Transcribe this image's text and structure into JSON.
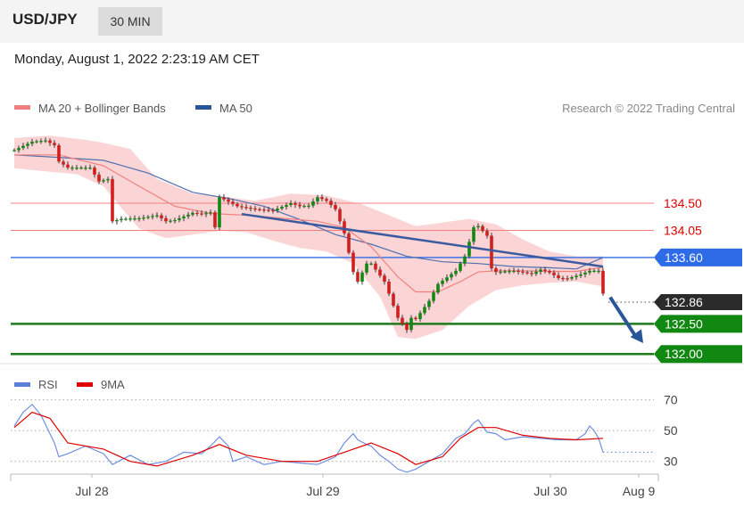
{
  "header": {
    "symbol": "USD/JPY",
    "interval": "30 MIN",
    "datetime": "Monday, August 1, 2022 2:23:19 AM CET"
  },
  "legend": {
    "ma20": "MA 20 + Bollinger Bands",
    "ma50": "MA 50",
    "credit": "Research © 2022 Trading Central",
    "colors": {
      "ma20": "#f08080",
      "ma50": "#2a5599",
      "bands": "#fbd5d5"
    }
  },
  "chart_data": [
    {
      "type": "candlestick",
      "title": "",
      "xlabel": "",
      "ylabel": "",
      "x_ticks": [
        "Jul 28",
        "Jul 29",
        "Jul 30",
        "Aug 9"
      ],
      "ylim": [
        131.9,
        135.8
      ],
      "price_path": [
        [
          0,
          135.38
        ],
        [
          4,
          135.52
        ],
        [
          7,
          135.54
        ],
        [
          9,
          135.46
        ],
        [
          10,
          135.19
        ],
        [
          12,
          135.09
        ],
        [
          17,
          135.09
        ],
        [
          19,
          134.86
        ],
        [
          21,
          134.9
        ],
        [
          22,
          134.2
        ],
        [
          24,
          134.24
        ],
        [
          28,
          134.25
        ],
        [
          32,
          134.3
        ],
        [
          34,
          134.2
        ],
        [
          36,
          134.22
        ],
        [
          40,
          134.34
        ],
        [
          42,
          134.32
        ],
        [
          44,
          134.35
        ],
        [
          45,
          134.1
        ],
        [
          46,
          134.6
        ],
        [
          50,
          134.45
        ],
        [
          54,
          134.4
        ],
        [
          58,
          134.38
        ],
        [
          62,
          134.5
        ],
        [
          64,
          134.45
        ],
        [
          66,
          134.46
        ],
        [
          68,
          134.6
        ],
        [
          70,
          134.54
        ],
        [
          72,
          134.4
        ],
        [
          74,
          134.0
        ],
        [
          76,
          133.36
        ],
        [
          77,
          133.2
        ],
        [
          79,
          133.5
        ],
        [
          80,
          133.5
        ],
        [
          83,
          133.2
        ],
        [
          86,
          132.6
        ],
        [
          88,
          132.4
        ],
        [
          89,
          132.6
        ],
        [
          90,
          132.58
        ],
        [
          93,
          132.88
        ],
        [
          95,
          133.16
        ],
        [
          99,
          133.38
        ],
        [
          101,
          133.62
        ],
        [
          103,
          134.1
        ],
        [
          104,
          134.12
        ],
        [
          106,
          133.96
        ],
        [
          107,
          133.42
        ],
        [
          108,
          133.36
        ],
        [
          112,
          133.38
        ],
        [
          116,
          133.33
        ],
        [
          118,
          133.4
        ],
        [
          120,
          133.35
        ],
        [
          122,
          133.26
        ],
        [
          124,
          133.25
        ],
        [
          127,
          133.32
        ],
        [
          129,
          133.38
        ],
        [
          131,
          133.38
        ],
        [
          132,
          133.0
        ]
      ],
      "ma20": [
        [
          0,
          135.3
        ],
        [
          10,
          135.3
        ],
        [
          20,
          135.12
        ],
        [
          28,
          134.78
        ],
        [
          36,
          134.45
        ],
        [
          44,
          134.33
        ],
        [
          52,
          134.3
        ],
        [
          60,
          134.25
        ],
        [
          68,
          134.2
        ],
        [
          74,
          134.1
        ],
        [
          80,
          133.78
        ],
        [
          86,
          133.28
        ],
        [
          90,
          133.03
        ],
        [
          95,
          133.03
        ],
        [
          100,
          133.2
        ],
        [
          104,
          133.36
        ],
        [
          108,
          133.38
        ],
        [
          114,
          133.38
        ],
        [
          120,
          133.37
        ],
        [
          126,
          133.37
        ],
        [
          132,
          133.44
        ]
      ],
      "ma50": [
        [
          0,
          135.3
        ],
        [
          10,
          135.26
        ],
        [
          20,
          135.21
        ],
        [
          30,
          135.0
        ],
        [
          40,
          134.68
        ],
        [
          48,
          134.58
        ],
        [
          56,
          134.45
        ],
        [
          64,
          134.23
        ],
        [
          72,
          133.98
        ],
        [
          80,
          133.82
        ],
        [
          88,
          133.62
        ],
        [
          96,
          133.53
        ],
        [
          104,
          133.5
        ],
        [
          112,
          133.45
        ],
        [
          120,
          133.43
        ],
        [
          126,
          133.41
        ],
        [
          132,
          133.6
        ]
      ],
      "bollinger_upper": [
        [
          0,
          135.58
        ],
        [
          8,
          135.62
        ],
        [
          16,
          135.55
        ],
        [
          20,
          135.5
        ],
        [
          26,
          135.4
        ],
        [
          32,
          134.9
        ],
        [
          40,
          134.66
        ],
        [
          48,
          134.6
        ],
        [
          54,
          134.54
        ],
        [
          62,
          134.66
        ],
        [
          70,
          134.63
        ],
        [
          78,
          134.48
        ],
        [
          84,
          134.3
        ],
        [
          90,
          134.12
        ],
        [
          96,
          134.18
        ],
        [
          102,
          134.24
        ],
        [
          108,
          134.15
        ],
        [
          114,
          133.9
        ],
        [
          120,
          133.7
        ],
        [
          126,
          133.62
        ],
        [
          132,
          133.62
        ]
      ],
      "bollinger_lower": [
        [
          0,
          135.08
        ],
        [
          8,
          135.02
        ],
        [
          14,
          134.98
        ],
        [
          20,
          134.78
        ],
        [
          24,
          134.42
        ],
        [
          28,
          134.08
        ],
        [
          34,
          133.92
        ],
        [
          40,
          133.98
        ],
        [
          46,
          134.04
        ],
        [
          52,
          134.02
        ],
        [
          58,
          133.88
        ],
        [
          64,
          133.76
        ],
        [
          70,
          133.7
        ],
        [
          76,
          133.5
        ],
        [
          82,
          132.95
        ],
        [
          86,
          132.28
        ],
        [
          90,
          132.25
        ],
        [
          96,
          132.4
        ],
        [
          102,
          132.8
        ],
        [
          108,
          133.06
        ],
        [
          114,
          133.14
        ],
        [
          120,
          133.18
        ],
        [
          126,
          133.2
        ],
        [
          132,
          133.12
        ]
      ],
      "trendline": {
        "from": [
          51,
          134.32
        ],
        "to": [
          132,
          133.45
        ]
      },
      "forecast_arrow": {
        "from": [
          132,
          133.0
        ],
        "to": [
          141,
          132.18
        ]
      },
      "levels": [
        {
          "value": 134.5,
          "label": "134.50",
          "kind": "resistance"
        },
        {
          "value": 134.05,
          "label": "134.05",
          "kind": "resistance"
        },
        {
          "value": 133.6,
          "label": "133.60",
          "kind": "pivot"
        },
        {
          "value": 132.86,
          "label": "132.86",
          "kind": "last"
        },
        {
          "value": 132.5,
          "label": "132.50",
          "kind": "support"
        },
        {
          "value": 132.0,
          "label": "132.00",
          "kind": "support"
        }
      ]
    },
    {
      "type": "line",
      "title": "",
      "legend": [
        "RSI",
        "9MA"
      ],
      "ylim": [
        20,
        75
      ],
      "y_ticks": [
        30,
        50,
        70
      ],
      "series": [
        {
          "name": "RSI",
          "values": [
            [
              0,
              53
            ],
            [
              2,
              62
            ],
            [
              4,
              67
            ],
            [
              6,
              60
            ],
            [
              9,
              42
            ],
            [
              10,
              33
            ],
            [
              12,
              35
            ],
            [
              16,
              40
            ],
            [
              20,
              35
            ],
            [
              22,
              28
            ],
            [
              26,
              34
            ],
            [
              30,
              28
            ],
            [
              34,
              30
            ],
            [
              38,
              36
            ],
            [
              42,
              35
            ],
            [
              44,
              40
            ],
            [
              46,
              46
            ],
            [
              48,
              40
            ],
            [
              49,
              30
            ],
            [
              52,
              33
            ],
            [
              56,
              28
            ],
            [
              60,
              30
            ],
            [
              64,
              29
            ],
            [
              68,
              28
            ],
            [
              72,
              33
            ],
            [
              74,
              42
            ],
            [
              76,
              48
            ],
            [
              77,
              44
            ],
            [
              79,
              41
            ],
            [
              80,
              40
            ],
            [
              82,
              34
            ],
            [
              84,
              30
            ],
            [
              86,
              25
            ],
            [
              88,
              23
            ],
            [
              90,
              25
            ],
            [
              93,
              30
            ],
            [
              96,
              35
            ],
            [
              99,
              45
            ],
            [
              101,
              48
            ],
            [
              103,
              55
            ],
            [
              104,
              57
            ],
            [
              106,
              49
            ],
            [
              108,
              48
            ],
            [
              110,
              44
            ],
            [
              114,
              46
            ],
            [
              118,
              45
            ],
            [
              122,
              44
            ],
            [
              126,
              44
            ],
            [
              128,
              48
            ],
            [
              129,
              53
            ],
            [
              130,
              50
            ],
            [
              131,
              45
            ],
            [
              132,
              36
            ]
          ]
        },
        {
          "name": "9MA",
          "values": [
            [
              0,
              52
            ],
            [
              4,
              62
            ],
            [
              8,
              58
            ],
            [
              12,
              42
            ],
            [
              20,
              38
            ],
            [
              26,
              30
            ],
            [
              32,
              27
            ],
            [
              40,
              34
            ],
            [
              46,
              41
            ],
            [
              52,
              34
            ],
            [
              60,
              30
            ],
            [
              68,
              30
            ],
            [
              74,
              36
            ],
            [
              80,
              42
            ],
            [
              86,
              35
            ],
            [
              90,
              28
            ],
            [
              96,
              33
            ],
            [
              100,
              45
            ],
            [
              104,
              52
            ],
            [
              108,
              52
            ],
            [
              114,
              47
            ],
            [
              120,
              45
            ],
            [
              126,
              44
            ],
            [
              132,
              45
            ]
          ]
        }
      ]
    }
  ]
}
